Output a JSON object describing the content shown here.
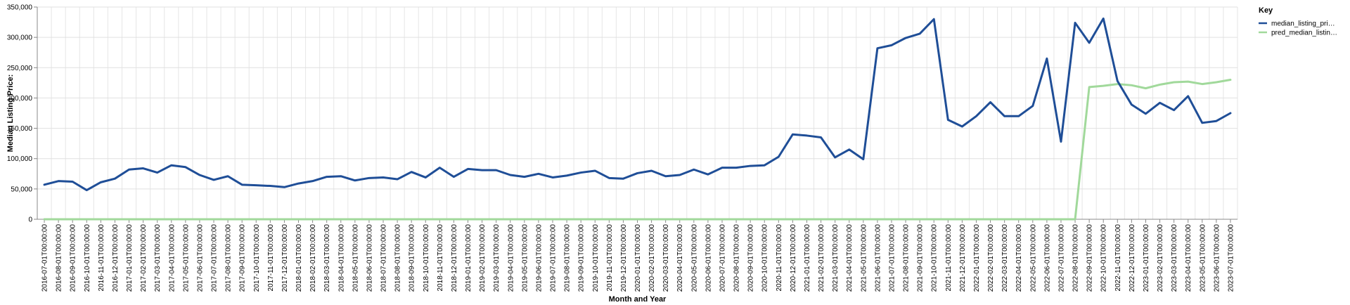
{
  "chart_data": {
    "type": "line",
    "xlabel": "Month and Year",
    "ylabel": "Median Listing Price:",
    "ylim": [
      0,
      350000
    ],
    "yticks": [
      "0",
      "50,000",
      "100,000",
      "150,000",
      "200,000",
      "250,000",
      "300,000",
      "350,000"
    ],
    "grid": true,
    "legend_position": "right",
    "legend_title": "Key",
    "categories": [
      "2016-07-01T00:00:00",
      "2016-08-01T00:00:00",
      "2016-09-01T00:00:00",
      "2016-10-01T00:00:00",
      "2016-11-01T00:00:00",
      "2016-12-01T00:00:00",
      "2017-01-01T00:00:00",
      "2017-02-01T00:00:00",
      "2017-03-01T00:00:00",
      "2017-04-01T00:00:00",
      "2017-05-01T00:00:00",
      "2017-06-01T00:00:00",
      "2017-07-01T00:00:00",
      "2017-08-01T00:00:00",
      "2017-09-01T00:00:00",
      "2017-10-01T00:00:00",
      "2017-11-01T00:00:00",
      "2017-12-01T00:00:00",
      "2018-01-01T00:00:00",
      "2018-02-01T00:00:00",
      "2018-03-01T00:00:00",
      "2018-04-01T00:00:00",
      "2018-05-01T00:00:00",
      "2018-06-01T00:00:00",
      "2018-07-01T00:00:00",
      "2018-08-01T00:00:00",
      "2018-09-01T00:00:00",
      "2018-10-01T00:00:00",
      "2018-11-01T00:00:00",
      "2018-12-01T00:00:00",
      "2019-01-01T00:00:00",
      "2019-02-01T00:00:00",
      "2019-03-01T00:00:00",
      "2019-04-01T00:00:00",
      "2019-05-01T00:00:00",
      "2019-06-01T00:00:00",
      "2019-07-01T00:00:00",
      "2019-08-01T00:00:00",
      "2019-09-01T00:00:00",
      "2019-10-01T00:00:00",
      "2019-11-01T00:00:00",
      "2019-12-01T00:00:00",
      "2020-01-01T00:00:00",
      "2020-02-01T00:00:00",
      "2020-03-01T00:00:00",
      "2020-04-01T00:00:00",
      "2020-05-01T00:00:00",
      "2020-06-01T00:00:00",
      "2020-07-01T00:00:00",
      "2020-08-01T00:00:00",
      "2020-09-01T00:00:00",
      "2020-10-01T00:00:00",
      "2020-11-01T00:00:00",
      "2020-12-01T00:00:00",
      "2021-01-01T00:00:00",
      "2021-02-01T00:00:00",
      "2021-03-01T00:00:00",
      "2021-04-01T00:00:00",
      "2021-05-01T00:00:00",
      "2021-06-01T00:00:00",
      "2021-07-01T00:00:00",
      "2021-08-01T00:00:00",
      "2021-09-01T00:00:00",
      "2021-10-01T00:00:00",
      "2021-11-01T00:00:00",
      "2021-12-01T00:00:00",
      "2022-01-01T00:00:00",
      "2022-02-01T00:00:00",
      "2022-03-01T00:00:00",
      "2022-04-01T00:00:00",
      "2022-05-01T00:00:00",
      "2022-06-01T00:00:00",
      "2022-07-01T00:00:00",
      "2022-08-01T00:00:00",
      "2022-09-01T00:00:00",
      "2022-10-01T00:00:00",
      "2022-11-01T00:00:00",
      "2022-12-01T00:00:00",
      "2023-01-01T00:00:00",
      "2023-02-01T00:00:00",
      "2023-03-01T00:00:00",
      "2023-04-01T00:00:00",
      "2023-05-01T00:00:00",
      "2023-06-01T00:00:00",
      "2023-07-01T00:00:00"
    ],
    "series": [
      {
        "name": "median_listing_pri…",
        "color": "#1f4e97",
        "values": [
          57000,
          63000,
          62000,
          48000,
          61000,
          67000,
          82000,
          84000,
          77000,
          89000,
          86000,
          73000,
          65000,
          71000,
          57000,
          56000,
          55000,
          53000,
          59000,
          63000,
          70000,
          71000,
          64000,
          68000,
          69000,
          66000,
          78000,
          69000,
          85000,
          70000,
          83000,
          81000,
          81000,
          73000,
          70000,
          75000,
          69000,
          72000,
          77000,
          80000,
          68000,
          67000,
          76000,
          80000,
          71000,
          73000,
          82000,
          74000,
          85000,
          85000,
          88000,
          89000,
          103000,
          140000,
          138000,
          135000,
          102000,
          115000,
          99000,
          282000,
          287000,
          299000,
          306000,
          330000,
          164000,
          153000,
          170000,
          193000,
          170000,
          170000,
          187000,
          265000,
          128000,
          324000,
          291000,
          331000,
          228000,
          189000,
          174000,
          192000,
          180000,
          203000,
          159000,
          162000,
          175000
        ]
      },
      {
        "name": "pred_median_listin…",
        "color": "#a1d99b",
        "values": [
          0,
          0,
          0,
          0,
          0,
          0,
          0,
          0,
          0,
          0,
          0,
          0,
          0,
          0,
          0,
          0,
          0,
          0,
          0,
          0,
          0,
          0,
          0,
          0,
          0,
          0,
          0,
          0,
          0,
          0,
          0,
          0,
          0,
          0,
          0,
          0,
          0,
          0,
          0,
          0,
          0,
          0,
          0,
          0,
          0,
          0,
          0,
          0,
          0,
          0,
          0,
          0,
          0,
          0,
          0,
          0,
          0,
          0,
          0,
          0,
          0,
          0,
          0,
          0,
          0,
          0,
          0,
          0,
          0,
          0,
          0,
          0,
          0,
          0,
          218000,
          220000,
          223000,
          221000,
          216000,
          222000,
          226000,
          227000,
          223000,
          226000,
          230000
        ]
      }
    ]
  }
}
